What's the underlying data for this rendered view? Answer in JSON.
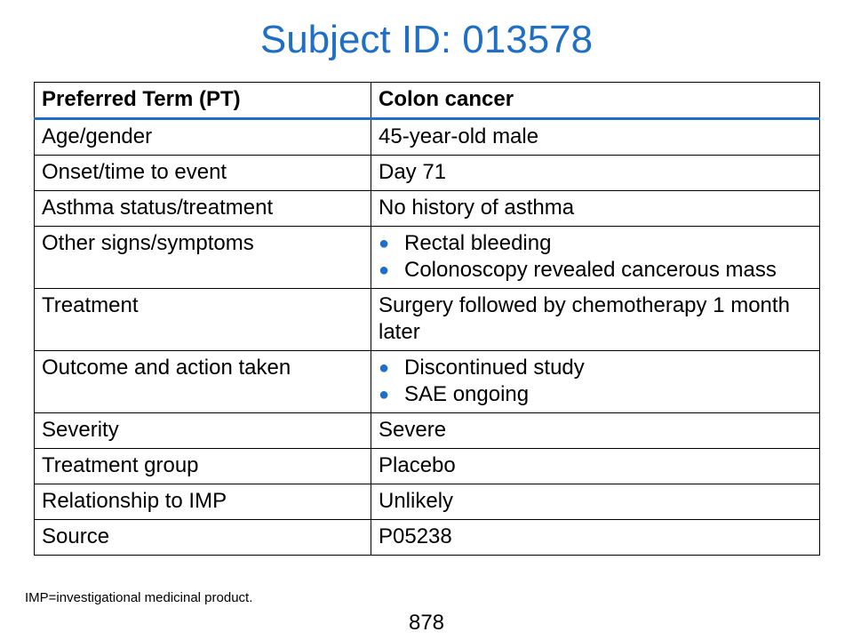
{
  "title": "Subject ID: 013578",
  "table": {
    "header": {
      "label": "Preferred Term (PT)",
      "value": "Colon cancer"
    },
    "rows": [
      {
        "label": "Age/gender",
        "value": "45-year-old male"
      },
      {
        "label": "Onset/time to event",
        "value": "Day 71"
      },
      {
        "label": "Asthma status/treatment",
        "value": "No history of asthma"
      },
      {
        "label": "Other signs/symptoms",
        "bullets": [
          "Rectal bleeding",
          "Colonoscopy revealed cancerous mass"
        ]
      },
      {
        "label": "Treatment",
        "value": "Surgery followed by chemotherapy 1 month later"
      },
      {
        "label": "Outcome and action taken",
        "bullets": [
          "Discontinued study",
          "SAE ongoing"
        ]
      },
      {
        "label": "Severity",
        "value": "Severe"
      },
      {
        "label": "Treatment group",
        "value": "Placebo"
      },
      {
        "label": "Relationship to IMP",
        "value": "Unlikely"
      },
      {
        "label": "Source",
        "value": "P05238"
      }
    ]
  },
  "bullet_glyph": "●",
  "footnote": "IMP=investigational medicinal product.",
  "page_number": "878",
  "colors": {
    "title": "#1f6fc6",
    "header_rule": "#1f6fc6",
    "bullet": "#1f6fc6"
  }
}
